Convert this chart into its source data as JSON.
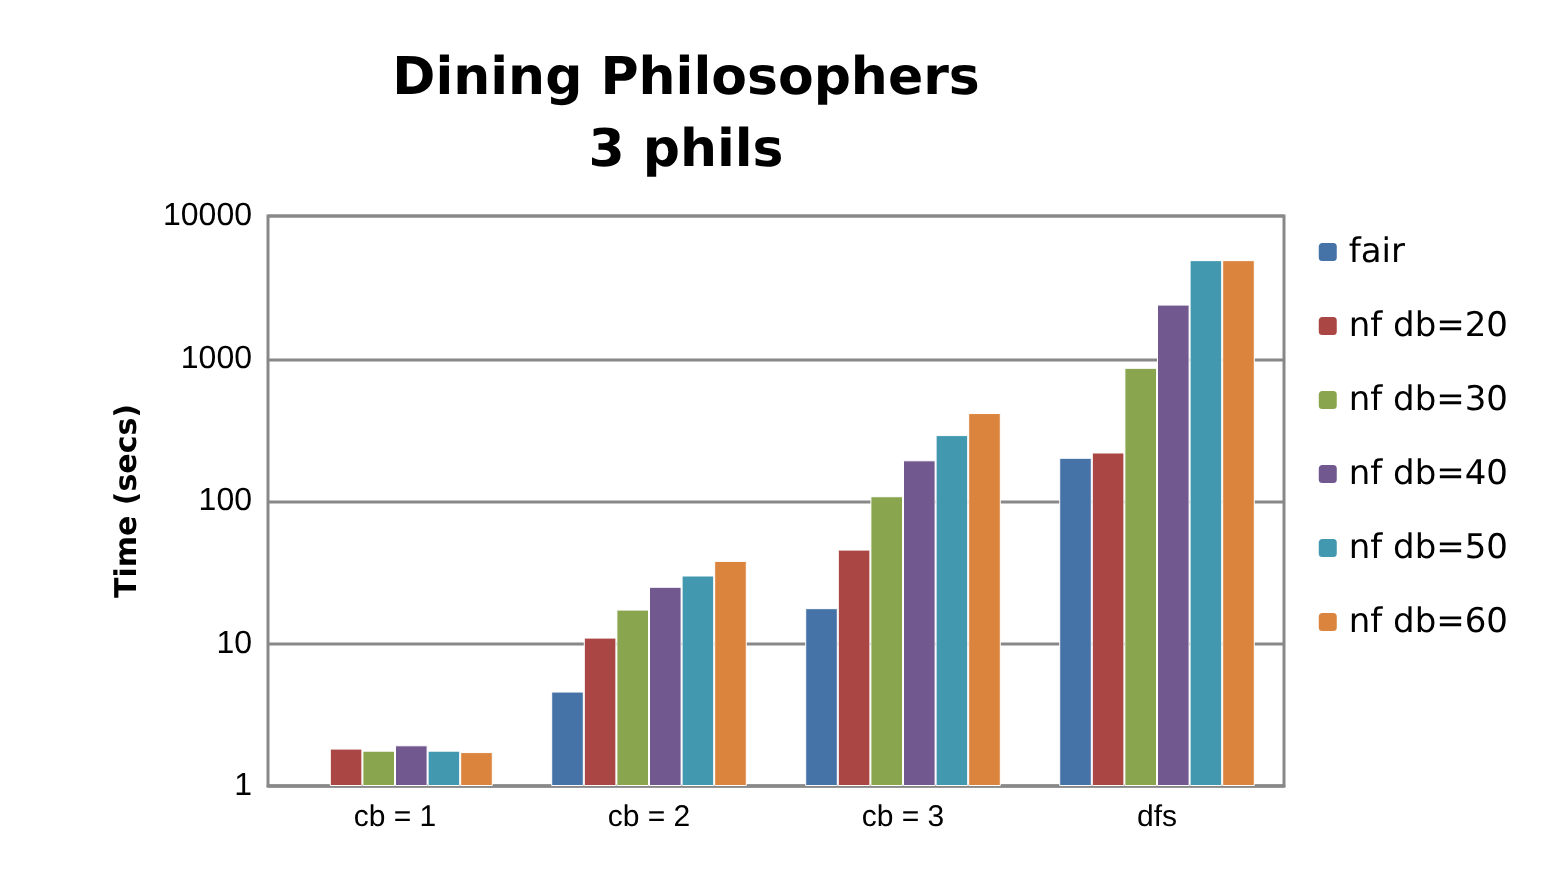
{
  "chart_data": {
    "type": "bar",
    "title": "Dining Philosophers\n3 phils",
    "ylabel": "Time (secs)",
    "categories": [
      "cb = 1",
      "cb = 2",
      "cb = 3",
      "dfs"
    ],
    "series": [
      {
        "name": "fair",
        "color": "#4572a7",
        "values": [
          null,
          4.6,
          17.7,
          201
        ]
      },
      {
        "name": "nf db=20",
        "color": "#aa4643",
        "values": [
          1.83,
          11,
          45.6,
          219
        ]
      },
      {
        "name": "nf db=30",
        "color": "#89a54e",
        "values": [
          1.77,
          17.3,
          108,
          860
        ]
      },
      {
        "name": "nf db=40",
        "color": "#71588f",
        "values": [
          1.93,
          25,
          193,
          2390
        ]
      },
      {
        "name": "nf db=50",
        "color": "#4198af",
        "values": [
          1.77,
          30,
          290,
          4900
        ]
      },
      {
        "name": "nf db=60",
        "color": "#db843d",
        "values": [
          1.73,
          38,
          414,
          4900
        ]
      }
    ],
    "log": true,
    "ylim": [
      1,
      10000
    ],
    "yticks": [
      1,
      10,
      100,
      1000,
      10000
    ],
    "grid": "y",
    "legend": "right"
  }
}
